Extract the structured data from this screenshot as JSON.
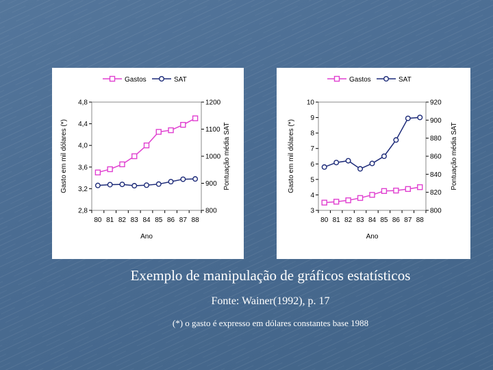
{
  "chart_data": [
    {
      "type": "line",
      "title": "",
      "xlabel": "Ano",
      "ylabel": "Gasto em mil dólares (*)",
      "y2label": "Pontuação média SAT",
      "categories": [
        "80",
        "81",
        "82",
        "83",
        "84",
        "85",
        "86",
        "87",
        "88"
      ],
      "ylim": [
        2.8,
        4.8
      ],
      "yticks": [
        "2,8",
        "3,2",
        "3,6",
        "4,0",
        "4,4",
        "4,8"
      ],
      "y2lim": [
        800,
        1200
      ],
      "y2ticks": [
        "800",
        "900",
        "1000",
        "1100",
        "1200"
      ],
      "legend_position": "top",
      "series": [
        {
          "name": "Gastos",
          "axis": "left",
          "color": "#e040d0",
          "marker": "square",
          "values": [
            3.5,
            3.56,
            3.65,
            3.8,
            4.0,
            4.25,
            4.28,
            4.38,
            4.5
          ]
        },
        {
          "name": "SAT",
          "axis": "right",
          "color": "#1c2a78",
          "marker": "circle",
          "values": [
            892,
            895,
            896,
            891,
            893,
            897,
            906,
            915,
            916
          ]
        }
      ]
    },
    {
      "type": "line",
      "title": "",
      "xlabel": "Ano",
      "ylabel": "Gasto em mil dólares (*)",
      "y2label": "Pontuação média SAT",
      "categories": [
        "80",
        "81",
        "82",
        "83",
        "84",
        "85",
        "86",
        "87",
        "88"
      ],
      "ylim": [
        3,
        10
      ],
      "yticks": [
        "3",
        "4",
        "5",
        "6",
        "7",
        "8",
        "9",
        "10"
      ],
      "y2lim": [
        800,
        920
      ],
      "y2ticks": [
        "800",
        "820",
        "840",
        "860",
        "880",
        "900",
        "920"
      ],
      "legend_position": "top",
      "series": [
        {
          "name": "Gastos",
          "axis": "left",
          "color": "#e040d0",
          "marker": "square",
          "values": [
            3.5,
            3.56,
            3.65,
            3.8,
            4.0,
            4.25,
            4.28,
            4.38,
            4.5
          ]
        },
        {
          "name": "SAT",
          "axis": "right",
          "color": "#1c2a78",
          "marker": "circle",
          "values": [
            848,
            853,
            855,
            846,
            852,
            860,
            878,
            902,
            903
          ]
        }
      ]
    }
  ],
  "captions": {
    "title": "Exemplo de manipulação de gráficos estatísticos",
    "source": "Fonte: Wainer(1992), p. 17",
    "note": "(*) o gasto é expresso em dólares constantes base 1988"
  }
}
